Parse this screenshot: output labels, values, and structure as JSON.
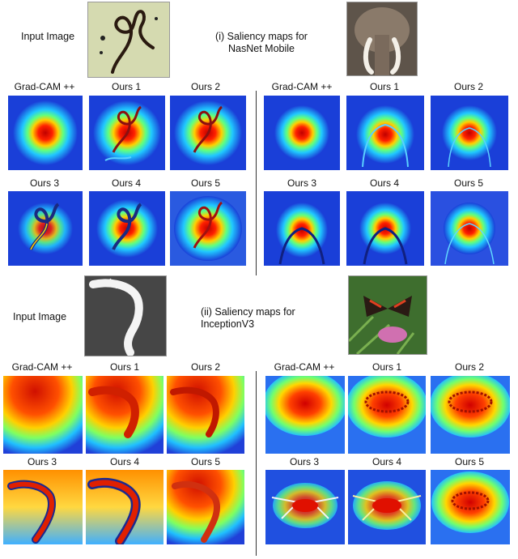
{
  "section_1": {
    "input_label": "Input Image",
    "caption_line1": "(i) Saliency maps for",
    "caption_line2": "NasNet Mobile",
    "left_panel": {
      "labels": [
        "Grad-CAM ++",
        "Ours 1",
        "Ours 2",
        "Ours 3",
        "Ours 4",
        "Ours 5"
      ],
      "input_thumbnail": "handwriting-sketch-image"
    },
    "right_panel": {
      "labels": [
        "Grad-CAM ++",
        "Ours 1",
        "Ours 2",
        "Ours 3",
        "Ours 4",
        "Ours 5"
      ],
      "input_thumbnail": "elephant-image"
    }
  },
  "section_2": {
    "input_label": "Input Image",
    "caption_line1": "(ii) Saliency maps for",
    "caption_line2": "InceptionV3",
    "left_panel": {
      "labels": [
        "Grad-CAM ++",
        "Ours 1",
        "Ours 2",
        "Ours 3",
        "Ours 4",
        "Ours 5"
      ],
      "input_thumbnail": "shark-image"
    },
    "right_panel": {
      "labels": [
        "Grad-CAM ++",
        "Ours 1",
        "Ours 2",
        "Ours 3",
        "Ours 4",
        "Ours 5"
      ],
      "input_thumbnail": "butterfly-image"
    }
  },
  "colors": {
    "jet_blue": "#1030d0",
    "jet_cyan": "#20d0ff",
    "jet_yellow": "#ffe020",
    "jet_red": "#e01000"
  }
}
